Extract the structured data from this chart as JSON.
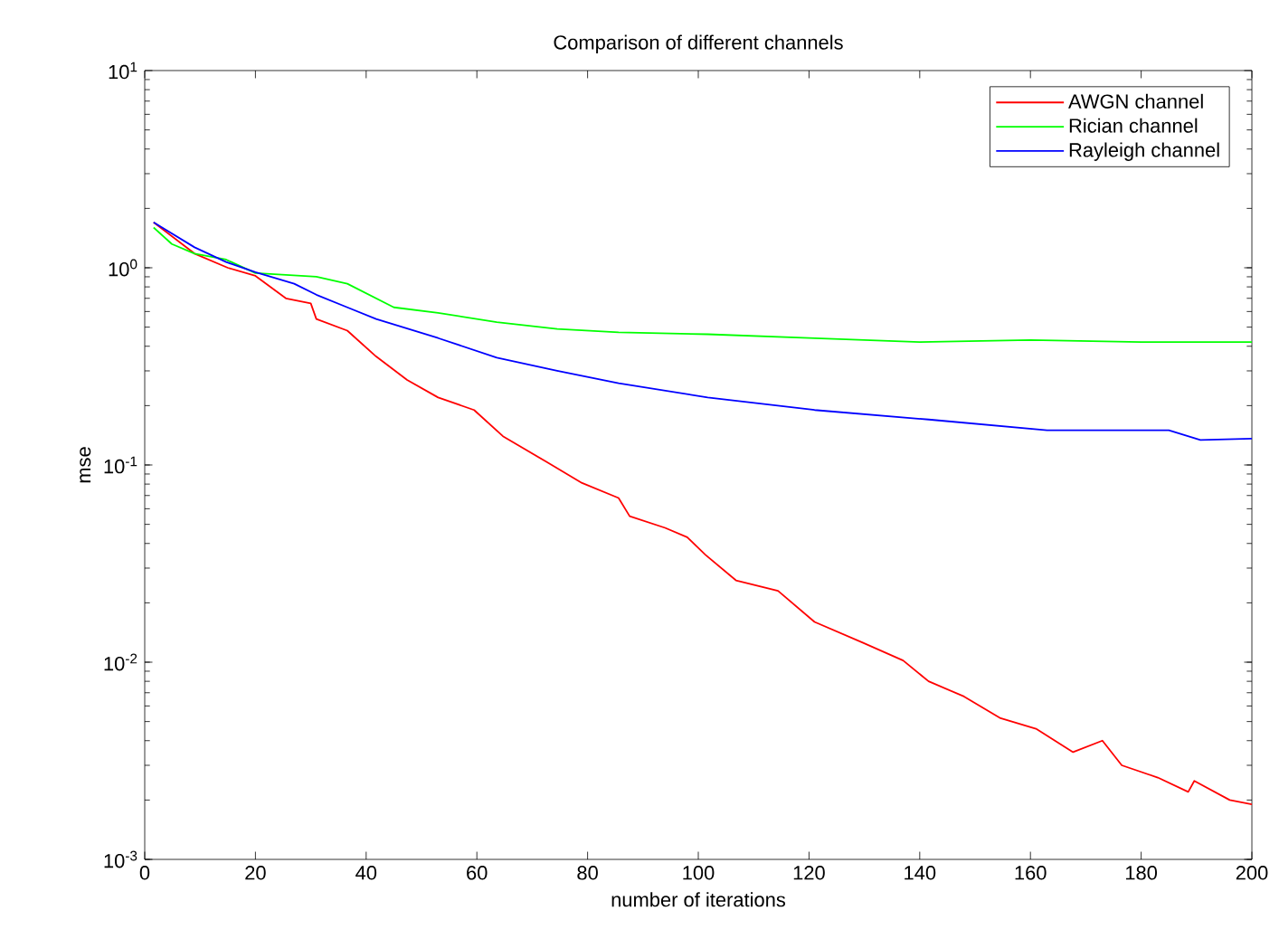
{
  "chart_data": {
    "type": "line",
    "title": "Comparison of different channels",
    "xlabel": "number of iterations",
    "ylabel": "mse",
    "log": "y",
    "xlim": [
      0,
      200
    ],
    "ylim": [
      0.001,
      10
    ],
    "xticks": [
      0,
      20,
      40,
      60,
      80,
      100,
      120,
      140,
      160,
      180,
      200
    ],
    "yticks": [
      {
        "value": 0.001,
        "label": "10$^{-3}$"
      },
      {
        "value": 0.01,
        "label": "10$^{-2}$"
      },
      {
        "value": 0.1,
        "label": "10$^{-1}$"
      },
      {
        "value": 1,
        "label": "10$^{0}$"
      },
      {
        "value": 10,
        "label": "10$^{1}$"
      }
    ],
    "legend": "top right",
    "grid": false,
    "line_style": "solid",
    "marker": "none",
    "series": [
      {
        "name": "AWGN channel",
        "color": "#ff0000",
        "x": [
          1.6,
          9,
          15,
          20,
          25.5,
          30,
          31,
          36.6,
          41.8,
          47.4,
          53,
          59.5,
          64.7,
          72.5,
          79,
          85.6,
          87.6,
          94,
          98,
          101.3,
          106.8,
          114.4,
          121,
          129.6,
          137,
          141.6,
          148,
          154.6,
          161,
          167.7,
          173,
          176.5,
          183,
          188.5,
          189.6,
          196,
          200
        ],
        "values": [
          1.7,
          1.18,
          1.0,
          0.91,
          0.7,
          0.66,
          0.55,
          0.48,
          0.355,
          0.27,
          0.22,
          0.19,
          0.14,
          0.104,
          0.081,
          0.068,
          0.055,
          0.048,
          0.043,
          0.035,
          0.026,
          0.023,
          0.016,
          0.0126,
          0.0102,
          0.008,
          0.0067,
          0.0052,
          0.0046,
          0.0035,
          0.004,
          0.003,
          0.0026,
          0.0022,
          0.0025,
          0.002,
          0.0019
        ]
      },
      {
        "name": "Rician channel",
        "color": "#00ff00",
        "x": [
          1.6,
          4.9,
          9,
          14.7,
          20,
          31,
          36.6,
          45,
          53,
          63.6,
          74.5,
          85.6,
          101.7,
          120,
          140,
          160,
          180,
          200
        ],
        "values": [
          1.6,
          1.32,
          1.18,
          1.1,
          0.94,
          0.9,
          0.83,
          0.63,
          0.59,
          0.53,
          0.49,
          0.47,
          0.46,
          0.44,
          0.42,
          0.43,
          0.42,
          0.42
        ]
      },
      {
        "name": "Rayleigh channel",
        "color": "#0000ff",
        "x": [
          1.6,
          9,
          14.7,
          20,
          27,
          31,
          36.6,
          41.8,
          53,
          63.6,
          74.5,
          85.6,
          101.7,
          121,
          141.6,
          163,
          185,
          190.7,
          200
        ],
        "values": [
          1.7,
          1.27,
          1.07,
          0.95,
          0.83,
          0.73,
          0.63,
          0.55,
          0.44,
          0.35,
          0.3,
          0.26,
          0.22,
          0.19,
          0.17,
          0.15,
          0.15,
          0.134,
          0.136
        ]
      }
    ]
  }
}
